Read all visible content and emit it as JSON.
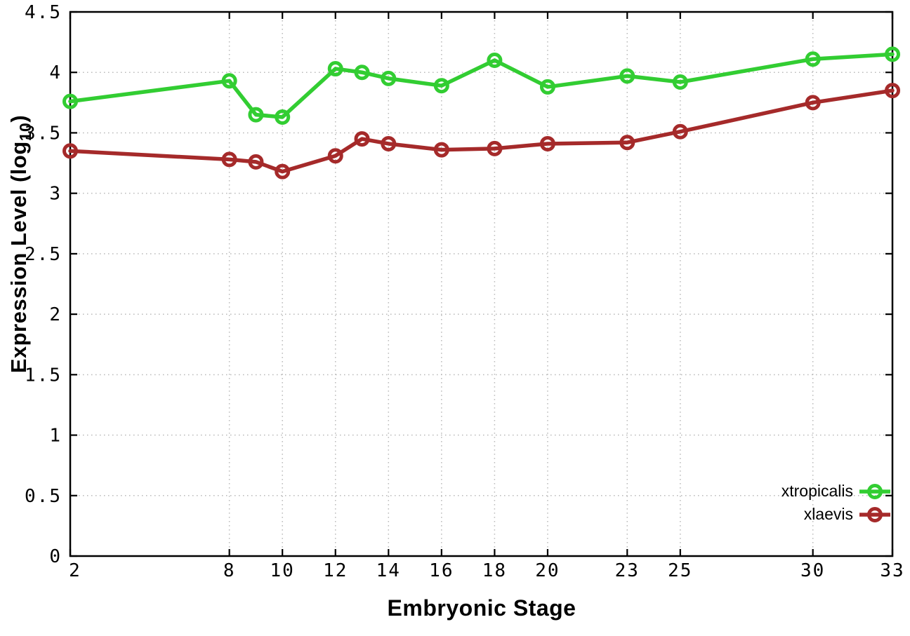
{
  "figure": {
    "background": "#ffffff",
    "border_color": "#000000",
    "grid_color": "#b8b8b8",
    "tick_text_color": "#000000"
  },
  "chart_data": {
    "type": "line",
    "title": "",
    "xlabel": "Embryonic Stage",
    "ylabel": "Expression Level (log10)",
    "ylabel_parts": {
      "prefix": "Expression Level (log",
      "sub": "10",
      "suffix": ")"
    },
    "xlim": [
      2,
      33
    ],
    "ylim": [
      0,
      4.5
    ],
    "grid": true,
    "legend_position": "inside bottom-right",
    "x": [
      2,
      8,
      9,
      10,
      12,
      13,
      14,
      16,
      18,
      20,
      23,
      25,
      30,
      33
    ],
    "x_ticks": [
      2,
      8,
      10,
      12,
      14,
      16,
      18,
      20,
      23,
      25,
      30,
      33
    ],
    "x_tick_labels": [
      "2",
      "8",
      "10",
      "12",
      "14",
      "16",
      "18",
      "20",
      "23",
      "25",
      "30",
      "33"
    ],
    "y_ticks": [
      0,
      0.5,
      1,
      1.5,
      2,
      2.5,
      3,
      3.5,
      4,
      4.5
    ],
    "y_tick_labels": [
      "0",
      "0.5",
      "1",
      "1.5",
      "2",
      "2.5",
      "3",
      "3.5",
      "4",
      "4.5"
    ],
    "series": [
      {
        "name": "xtropicalis",
        "color": "#32CD32",
        "marker": "open-circle",
        "values": [
          3.76,
          3.93,
          3.65,
          3.63,
          4.03,
          4.0,
          3.95,
          3.89,
          4.1,
          3.88,
          3.97,
          3.92,
          4.11,
          4.15
        ]
      },
      {
        "name": "xlaevis",
        "color": "#A52A2A",
        "marker": "open-circle",
        "values": [
          3.35,
          3.28,
          3.26,
          3.18,
          3.31,
          3.45,
          3.41,
          3.36,
          3.37,
          3.41,
          3.42,
          3.51,
          3.75,
          3.85
        ]
      }
    ]
  }
}
